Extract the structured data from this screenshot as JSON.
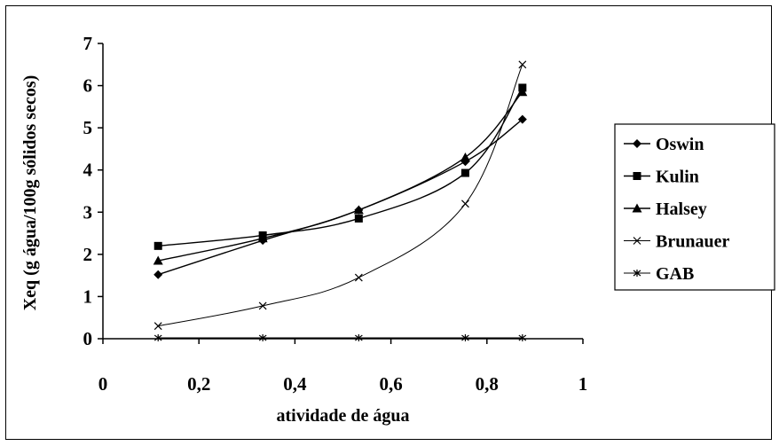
{
  "chart_data": {
    "type": "line",
    "title": "",
    "xlabel": "atividade de água",
    "ylabel": "Xeq (g água/100g sólidos secos)",
    "xlim": [
      0,
      1
    ],
    "ylim": [
      0,
      7
    ],
    "x_ticks": [
      "0",
      "0,2",
      "0,4",
      "0,6",
      "0,8",
      "1"
    ],
    "y_ticks": [
      "0",
      "1",
      "2",
      "3",
      "4",
      "5",
      "6",
      "7"
    ],
    "grid": false,
    "legend_position": "right",
    "x": [
      0.115,
      0.333,
      0.533,
      0.755,
      0.874
    ],
    "series": [
      {
        "name": "Oswin",
        "marker": "diamond",
        "color": "#000000",
        "values": [
          1.52,
          2.33,
          3.05,
          4.2,
          5.2
        ]
      },
      {
        "name": "Kulin",
        "marker": "square",
        "color": "#000000",
        "values": [
          2.2,
          2.45,
          2.85,
          3.93,
          5.95
        ]
      },
      {
        "name": "Halsey",
        "marker": "triangle",
        "color": "#000000",
        "values": [
          1.85,
          2.38,
          3.05,
          4.3,
          5.85
        ]
      },
      {
        "name": "Brunauer",
        "marker": "x",
        "color": "#000000",
        "values": [
          0.3,
          0.78,
          1.45,
          3.2,
          6.5
        ]
      },
      {
        "name": "GAB",
        "marker": "star",
        "color": "#000000",
        "values": [
          0.02,
          0.02,
          0.02,
          0.02,
          0.02
        ]
      }
    ]
  }
}
